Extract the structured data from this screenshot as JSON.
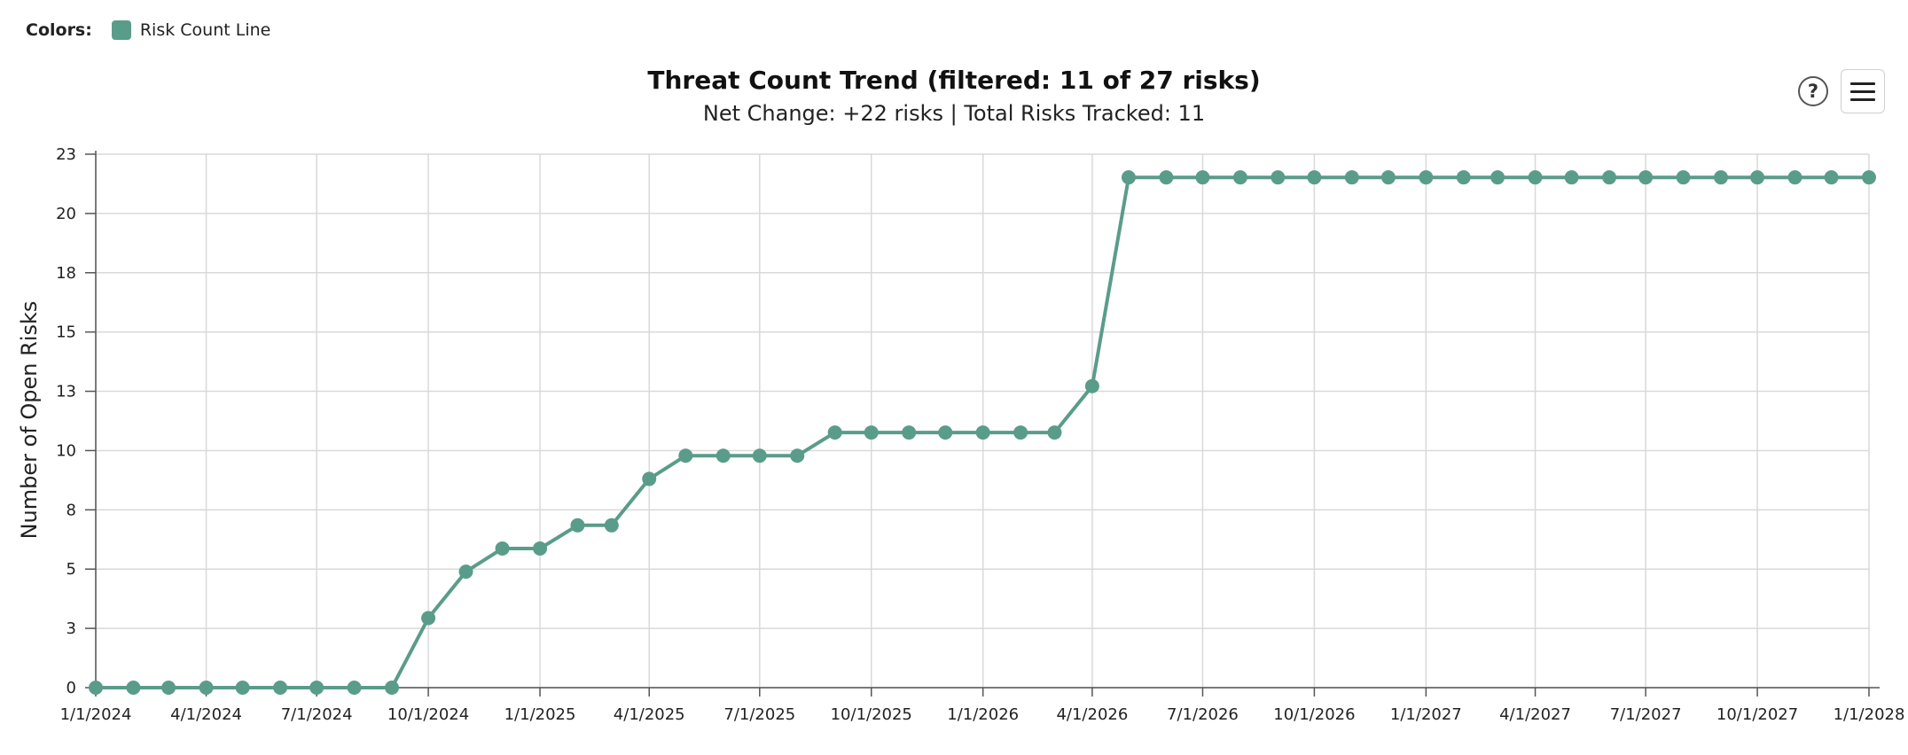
{
  "legend": {
    "caption": "Colors:",
    "items": [
      {
        "label": "Risk Count Line",
        "color": "#5a9c8a"
      }
    ]
  },
  "toolbar": {
    "help_label": "?",
    "help_icon": "question-circle-icon",
    "menu_icon": "hamburger-menu-icon"
  },
  "chart_data": {
    "type": "line",
    "title": "Threat Count Trend (filtered: 11 of 27 risks)",
    "subtitle": "Net Change: +22 risks | Total Risks Tracked: 11",
    "xlabel": "",
    "ylabel": "Number of Open Risks",
    "ylim": [
      0,
      23
    ],
    "y_ticks": [
      "0",
      "3",
      "5",
      "8",
      "10",
      "13",
      "15",
      "18",
      "20",
      "23"
    ],
    "x_ticks": [
      "1/1/2024",
      "4/1/2024",
      "7/1/2024",
      "10/1/2024",
      "1/1/2025",
      "4/1/2025",
      "7/1/2025",
      "10/1/2025",
      "1/1/2026",
      "4/1/2026",
      "7/1/2026",
      "10/1/2026",
      "1/1/2027",
      "4/1/2027",
      "7/1/2027",
      "10/1/2027",
      "1/1/2028"
    ],
    "xlim": [
      "2024-01-01",
      "2028-01-01"
    ],
    "grid": true,
    "legend_position": "top-left",
    "color": "#5a9c8a",
    "series": [
      {
        "name": "Risk Count Line",
        "points": [
          {
            "x": "2024-01-01",
            "y": 0
          },
          {
            "x": "2024-02-01",
            "y": 0
          },
          {
            "x": "2024-03-01",
            "y": 0
          },
          {
            "x": "2024-04-01",
            "y": 0
          },
          {
            "x": "2024-05-01",
            "y": 0
          },
          {
            "x": "2024-06-01",
            "y": 0
          },
          {
            "x": "2024-07-01",
            "y": 0
          },
          {
            "x": "2024-08-01",
            "y": 0
          },
          {
            "x": "2024-09-01",
            "y": 0
          },
          {
            "x": "2024-10-01",
            "y": 3
          },
          {
            "x": "2024-11-01",
            "y": 5
          },
          {
            "x": "2024-12-01",
            "y": 6
          },
          {
            "x": "2025-01-01",
            "y": 6
          },
          {
            "x": "2025-02-01",
            "y": 7
          },
          {
            "x": "2025-03-01",
            "y": 7
          },
          {
            "x": "2025-04-01",
            "y": 9
          },
          {
            "x": "2025-05-01",
            "y": 10
          },
          {
            "x": "2025-06-01",
            "y": 10
          },
          {
            "x": "2025-07-01",
            "y": 10
          },
          {
            "x": "2025-08-01",
            "y": 10
          },
          {
            "x": "2025-09-01",
            "y": 11
          },
          {
            "x": "2025-10-01",
            "y": 11
          },
          {
            "x": "2025-11-01",
            "y": 11
          },
          {
            "x": "2025-12-01",
            "y": 11
          },
          {
            "x": "2026-01-01",
            "y": 11
          },
          {
            "x": "2026-02-01",
            "y": 11
          },
          {
            "x": "2026-03-01",
            "y": 11
          },
          {
            "x": "2026-04-01",
            "y": 13
          },
          {
            "x": "2026-05-01",
            "y": 22
          },
          {
            "x": "2026-06-01",
            "y": 22
          },
          {
            "x": "2026-07-01",
            "y": 22
          },
          {
            "x": "2026-08-01",
            "y": 22
          },
          {
            "x": "2026-09-01",
            "y": 22
          },
          {
            "x": "2026-10-01",
            "y": 22
          },
          {
            "x": "2026-11-01",
            "y": 22
          },
          {
            "x": "2026-12-01",
            "y": 22
          },
          {
            "x": "2027-01-01",
            "y": 22
          },
          {
            "x": "2027-02-01",
            "y": 22
          },
          {
            "x": "2027-03-01",
            "y": 22
          },
          {
            "x": "2027-04-01",
            "y": 22
          },
          {
            "x": "2027-05-01",
            "y": 22
          },
          {
            "x": "2027-06-01",
            "y": 22
          },
          {
            "x": "2027-07-01",
            "y": 22
          },
          {
            "x": "2027-08-01",
            "y": 22
          },
          {
            "x": "2027-09-01",
            "y": 22
          },
          {
            "x": "2027-10-01",
            "y": 22
          },
          {
            "x": "2027-11-01",
            "y": 22
          },
          {
            "x": "2027-12-01",
            "y": 22
          },
          {
            "x": "2028-01-01",
            "y": 22
          }
        ]
      }
    ]
  }
}
